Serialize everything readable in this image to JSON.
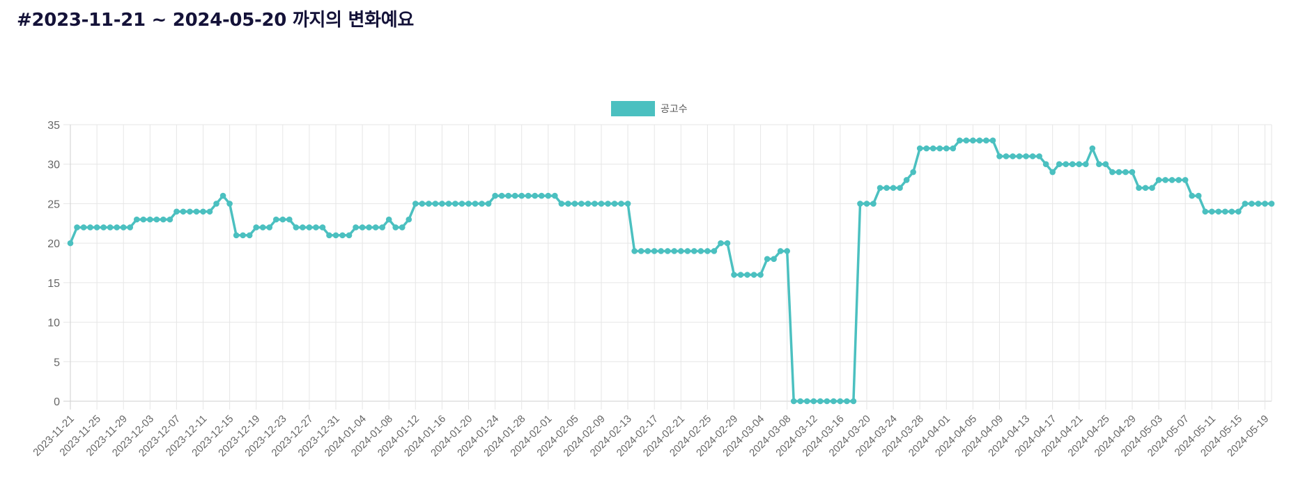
{
  "page": {
    "title": "#2023-11-21 ~ 2024-05-20 까지의 변화예요"
  },
  "chart_data": {
    "type": "line",
    "title": "",
    "xlabel": "",
    "ylabel": "",
    "ylim": [
      0,
      35
    ],
    "y_ticks": [
      0,
      5,
      10,
      15,
      20,
      25,
      30,
      35
    ],
    "grid": true,
    "legend_position": "top-center",
    "x": [
      "2023-11-21",
      "2023-11-22",
      "2023-11-23",
      "2023-11-24",
      "2023-11-25",
      "2023-11-26",
      "2023-11-27",
      "2023-11-28",
      "2023-11-29",
      "2023-11-30",
      "2023-12-01",
      "2023-12-02",
      "2023-12-03",
      "2023-12-04",
      "2023-12-05",
      "2023-12-06",
      "2023-12-07",
      "2023-12-08",
      "2023-12-09",
      "2023-12-10",
      "2023-12-11",
      "2023-12-12",
      "2023-12-13",
      "2023-12-14",
      "2023-12-15",
      "2023-12-16",
      "2023-12-17",
      "2023-12-18",
      "2023-12-19",
      "2023-12-20",
      "2023-12-21",
      "2023-12-22",
      "2023-12-23",
      "2023-12-24",
      "2023-12-25",
      "2023-12-26",
      "2023-12-27",
      "2023-12-28",
      "2023-12-29",
      "2023-12-30",
      "2023-12-31",
      "2024-01-01",
      "2024-01-02",
      "2024-01-03",
      "2024-01-04",
      "2024-01-05",
      "2024-01-06",
      "2024-01-07",
      "2024-01-08",
      "2024-01-09",
      "2024-01-10",
      "2024-01-11",
      "2024-01-12",
      "2024-01-13",
      "2024-01-14",
      "2024-01-15",
      "2024-01-16",
      "2024-01-17",
      "2024-01-18",
      "2024-01-19",
      "2024-01-20",
      "2024-01-21",
      "2024-01-22",
      "2024-01-23",
      "2024-01-24",
      "2024-01-25",
      "2024-01-26",
      "2024-01-27",
      "2024-01-28",
      "2024-01-29",
      "2024-01-30",
      "2024-01-31",
      "2024-02-01",
      "2024-02-02",
      "2024-02-03",
      "2024-02-04",
      "2024-02-05",
      "2024-02-06",
      "2024-02-07",
      "2024-02-08",
      "2024-02-09",
      "2024-02-10",
      "2024-02-11",
      "2024-02-12",
      "2024-02-13",
      "2024-02-14",
      "2024-02-15",
      "2024-02-16",
      "2024-02-17",
      "2024-02-18",
      "2024-02-19",
      "2024-02-20",
      "2024-02-21",
      "2024-02-22",
      "2024-02-23",
      "2024-02-24",
      "2024-02-25",
      "2024-02-26",
      "2024-02-27",
      "2024-02-28",
      "2024-02-29",
      "2024-03-01",
      "2024-03-02",
      "2024-03-03",
      "2024-03-04",
      "2024-03-05",
      "2024-03-06",
      "2024-03-07",
      "2024-03-08",
      "2024-03-09",
      "2024-03-10",
      "2024-03-11",
      "2024-03-12",
      "2024-03-13",
      "2024-03-14",
      "2024-03-15",
      "2024-03-16",
      "2024-03-17",
      "2024-03-18",
      "2024-03-19",
      "2024-03-20",
      "2024-03-21",
      "2024-03-22",
      "2024-03-23",
      "2024-03-24",
      "2024-03-25",
      "2024-03-26",
      "2024-03-27",
      "2024-03-28",
      "2024-03-29",
      "2024-03-30",
      "2024-03-31",
      "2024-04-01",
      "2024-04-02",
      "2024-04-03",
      "2024-04-04",
      "2024-04-05",
      "2024-04-06",
      "2024-04-07",
      "2024-04-08",
      "2024-04-09",
      "2024-04-10",
      "2024-04-11",
      "2024-04-12",
      "2024-04-13",
      "2024-04-14",
      "2024-04-15",
      "2024-04-16",
      "2024-04-17",
      "2024-04-18",
      "2024-04-19",
      "2024-04-20",
      "2024-04-21",
      "2024-04-22",
      "2024-04-23",
      "2024-04-24",
      "2024-04-25",
      "2024-04-26",
      "2024-04-27",
      "2024-04-28",
      "2024-04-29",
      "2024-04-30",
      "2024-05-01",
      "2024-05-02",
      "2024-05-03",
      "2024-05-04",
      "2024-05-05",
      "2024-05-06",
      "2024-05-07",
      "2024-05-08",
      "2024-05-09",
      "2024-05-10",
      "2024-05-11",
      "2024-05-12",
      "2024-05-13",
      "2024-05-14",
      "2024-05-15",
      "2024-05-16",
      "2024-05-17",
      "2024-05-18",
      "2024-05-19",
      "2024-05-20"
    ],
    "series": [
      {
        "name": "공고수",
        "color": "#4bc0c0",
        "values": [
          20,
          22,
          22,
          22,
          22,
          22,
          22,
          22,
          22,
          22,
          23,
          23,
          23,
          23,
          23,
          23,
          24,
          24,
          24,
          24,
          24,
          24,
          25,
          26,
          25,
          21,
          21,
          21,
          22,
          22,
          22,
          23,
          23,
          23,
          22,
          22,
          22,
          22,
          22,
          21,
          21,
          21,
          21,
          22,
          22,
          22,
          22,
          22,
          23,
          22,
          22,
          23,
          25,
          25,
          25,
          25,
          25,
          25,
          25,
          25,
          25,
          25,
          25,
          25,
          26,
          26,
          26,
          26,
          26,
          26,
          26,
          26,
          26,
          26,
          25,
          25,
          25,
          25,
          25,
          25,
          25,
          25,
          25,
          25,
          25,
          19,
          19,
          19,
          19,
          19,
          19,
          19,
          19,
          19,
          19,
          19,
          19,
          19,
          20,
          20,
          16,
          16,
          16,
          16,
          16,
          18,
          18,
          19,
          19,
          0,
          0,
          0,
          0,
          0,
          0,
          0,
          0,
          0,
          0,
          25,
          25,
          25,
          27,
          27,
          27,
          27,
          28,
          29,
          32,
          32,
          32,
          32,
          32,
          32,
          33,
          33,
          33,
          33,
          33,
          33,
          31,
          31,
          31,
          31,
          31,
          31,
          31,
          30,
          29,
          30,
          30,
          30,
          30,
          30,
          32,
          30,
          30,
          29,
          29,
          29,
          29,
          27,
          27,
          27,
          28,
          28,
          28,
          28,
          28,
          26,
          26,
          24,
          24,
          24,
          24,
          24,
          24,
          25,
          25,
          25,
          25,
          25
        ]
      }
    ]
  }
}
